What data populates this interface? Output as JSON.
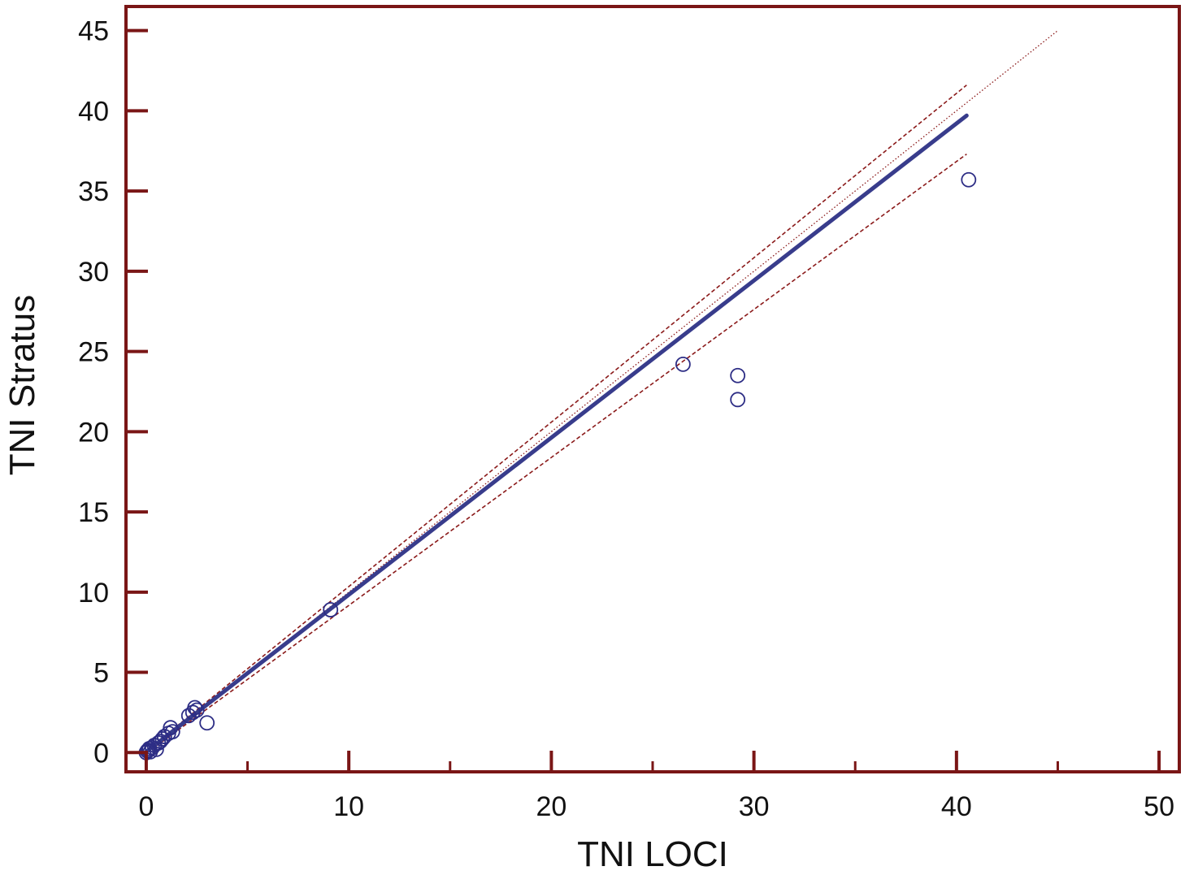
{
  "chart_data": {
    "type": "scatter",
    "title": "",
    "xlabel": "TNI LOCI",
    "ylabel": "TNI Stratus",
    "xlim": [
      -1,
      51
    ],
    "ylim": [
      -1.2,
      46.5
    ],
    "x_major_ticks": [
      0,
      10,
      20,
      30,
      40,
      50
    ],
    "x_minor_ticks": [
      5,
      15,
      25,
      35,
      45
    ],
    "y_ticks": [
      0,
      5,
      10,
      15,
      20,
      25,
      30,
      35,
      40,
      45
    ],
    "x_tick_labels": [
      "0",
      "10",
      "20",
      "30",
      "40",
      "50"
    ],
    "y_tick_labels": [
      "0",
      "5",
      "10",
      "15",
      "20",
      "25",
      "30",
      "35",
      "40",
      "45"
    ],
    "grid": false,
    "legend": "none",
    "colors": {
      "frame": "#7a1616",
      "points": "#2d2d85",
      "regression": "#383c8c",
      "confidence": "#8b1a1a",
      "identity": "#8b1a1a"
    },
    "points": [
      {
        "x": 0.0,
        "y": 0.0
      },
      {
        "x": 0.05,
        "y": 0.1
      },
      {
        "x": 0.1,
        "y": 0.15
      },
      {
        "x": 0.15,
        "y": 0.25
      },
      {
        "x": 0.2,
        "y": 0.05
      },
      {
        "x": 0.3,
        "y": 0.3
      },
      {
        "x": 0.4,
        "y": 0.45
      },
      {
        "x": 0.5,
        "y": 0.2
      },
      {
        "x": 0.6,
        "y": 0.6
      },
      {
        "x": 0.7,
        "y": 0.7
      },
      {
        "x": 0.8,
        "y": 0.85
      },
      {
        "x": 0.9,
        "y": 1.0
      },
      {
        "x": 1.1,
        "y": 1.2
      },
      {
        "x": 1.2,
        "y": 1.55
      },
      {
        "x": 1.3,
        "y": 1.3
      },
      {
        "x": 2.1,
        "y": 2.3
      },
      {
        "x": 2.3,
        "y": 2.5
      },
      {
        "x": 2.4,
        "y": 2.8
      },
      {
        "x": 2.5,
        "y": 2.65
      },
      {
        "x": 3.0,
        "y": 1.85
      },
      {
        "x": 9.1,
        "y": 8.9
      },
      {
        "x": 26.5,
        "y": 24.2
      },
      {
        "x": 29.2,
        "y": 23.5
      },
      {
        "x": 29.2,
        "y": 22.0
      },
      {
        "x": 40.6,
        "y": 35.7
      }
    ],
    "regression_line": {
      "x": [
        0,
        40.5
      ],
      "y": [
        0.05,
        39.7
      ]
    },
    "confidence_upper": {
      "x": [
        0,
        40.5
      ],
      "y": [
        0.1,
        41.6
      ]
    },
    "confidence_lower": {
      "x": [
        0,
        40.5
      ],
      "y": [
        -0.05,
        37.3
      ]
    },
    "identity_line": {
      "x": [
        0,
        45
      ],
      "y": [
        0,
        45
      ]
    }
  }
}
